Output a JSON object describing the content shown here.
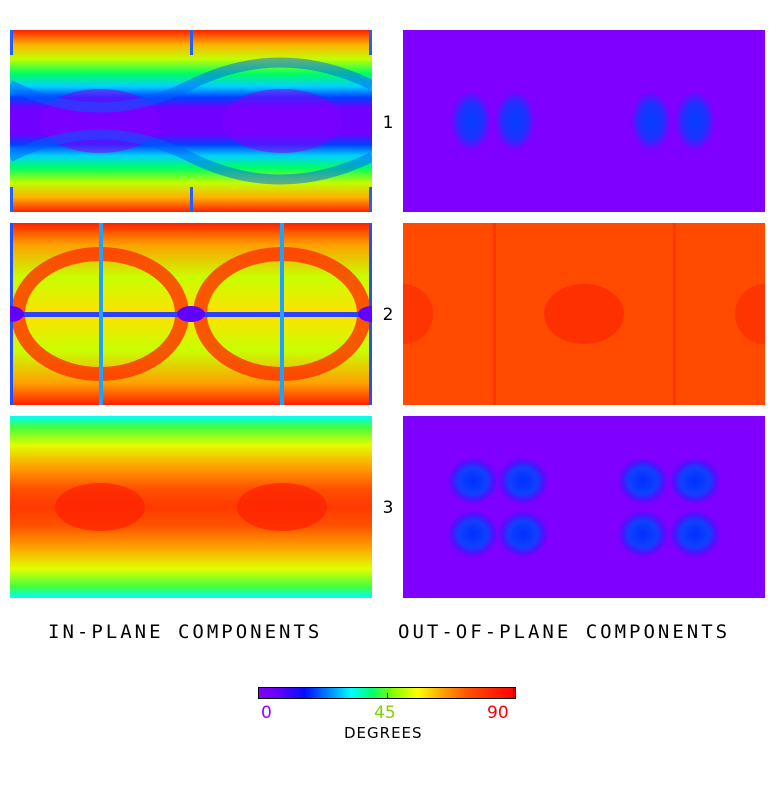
{
  "rows": [
    {
      "number": "1"
    },
    {
      "number": "2"
    },
    {
      "number": "3"
    }
  ],
  "captions": {
    "in_plane": "IN-PLANE COMPONENTS",
    "out_of_plane": "OUT-OF-PLANE COMPONENTS"
  },
  "colorbar": {
    "title": "DEGREES",
    "min_label": "0",
    "mid_label": "45",
    "max_label": "90",
    "min_color": "#9a00ff",
    "mid_color": "#7fd400",
    "max_color": "#ff0000",
    "range": [
      0,
      90
    ]
  },
  "colors": {
    "violet": "#8000ff",
    "blue": "#0020ff",
    "cyan": "#00d0ff",
    "green": "#40ff00",
    "yellow": "#ffff00",
    "orange": "#ff6000",
    "red": "#ff2000"
  }
}
